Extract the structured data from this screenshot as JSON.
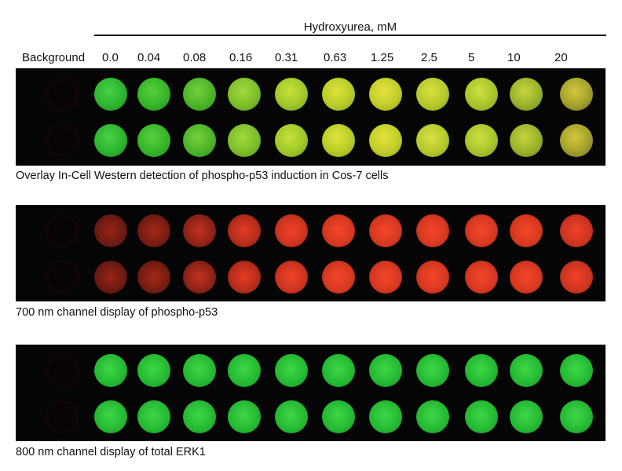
{
  "header": {
    "title": "Hydroxyurea, mM",
    "background_label": "Background",
    "concentrations": [
      "0.0",
      "0.04",
      "0.08",
      "0.16",
      "0.31",
      "0.63",
      "1.25",
      "2.5",
      "5",
      "10",
      "20"
    ]
  },
  "panels": [
    {
      "caption": "Overlay In-Cell Western detection of phospho-p53 induction in Cos-7 cells"
    },
    {
      "caption": "700 nm channel display of phospho-p53"
    },
    {
      "caption": "800 nm channel display of total ERK1"
    }
  ],
  "colors": {
    "overlay": "#b8cc28",
    "channel_700": "#e43c24",
    "channel_800": "#24b832"
  }
}
